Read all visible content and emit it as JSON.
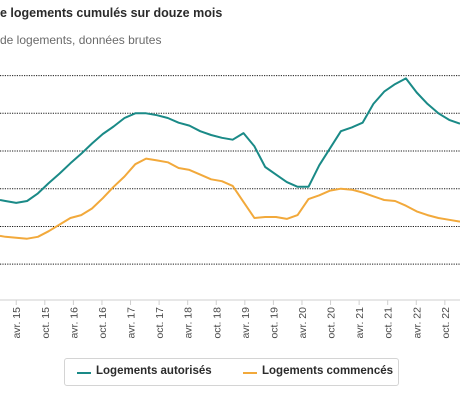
{
  "header": {
    "title": "e logements cumulés sur douze mois",
    "subtitle": "de logements, données brutes"
  },
  "colors": {
    "authorized": "#1a8a87",
    "started": "#f2a93b",
    "grid": "#1a1a1a",
    "axis": "#cfcfcf"
  },
  "chart_data": {
    "type": "line",
    "title": "e logements cumulés sur douze mois",
    "subtitle": "de logements, données brutes",
    "xlabel": "",
    "ylabel": "",
    "grid": true,
    "legend_position": "bottom",
    "x_tick_labels": [
      "avr. 15",
      "oct. 15",
      "avr. 16",
      "oct. 16",
      "avr. 17",
      "oct. 17",
      "avr. 18",
      "oct. 18",
      "avr. 19",
      "oct. 19",
      "avr. 20",
      "oct. 20",
      "avr. 21",
      "oct. 21",
      "avr. 22",
      "oct. 22"
    ],
    "x_range": [
      -1.5,
      41
    ],
    "y_range": [
      242,
      505
    ],
    "y_gridlines": [
      280,
      320,
      360,
      400,
      440,
      480
    ],
    "x": [
      -1.5,
      -1,
      0,
      1,
      2,
      3,
      4,
      5,
      6,
      7,
      8,
      9,
      10,
      11,
      12,
      13,
      14,
      15,
      16,
      17,
      18,
      19,
      20,
      21,
      22,
      23,
      24,
      25,
      26,
      27,
      28,
      29,
      30,
      31,
      32,
      33,
      34,
      35,
      36,
      37,
      38,
      39,
      40,
      41
    ],
    "series": [
      {
        "name": "Logements autorisés",
        "values": [
          348,
          347,
          345,
          347,
          355,
          366,
          376,
          387,
          397,
          408,
          418,
          426,
          435,
          440,
          440,
          438,
          435,
          430,
          427,
          421,
          417,
          414,
          412,
          419,
          405,
          383,
          375,
          367,
          362,
          362,
          385,
          403,
          421,
          425,
          430,
          450,
          463,
          471,
          477,
          462,
          450,
          440,
          433,
          429
        ]
      },
      {
        "name": "Logements commencés",
        "values": [
          310,
          309,
          308,
          307,
          309,
          315,
          322,
          329,
          332,
          339,
          350,
          362,
          373,
          386,
          392,
          390,
          388,
          382,
          380,
          375,
          370,
          368,
          363,
          346,
          329,
          330,
          330,
          328,
          332,
          349,
          353,
          358,
          360,
          359,
          356,
          352,
          348,
          347,
          342,
          336,
          332,
          329,
          327,
          325
        ]
      }
    ]
  },
  "legend": {
    "authorized_label": "Logements autorisés",
    "started_label": "Logements commencés"
  }
}
